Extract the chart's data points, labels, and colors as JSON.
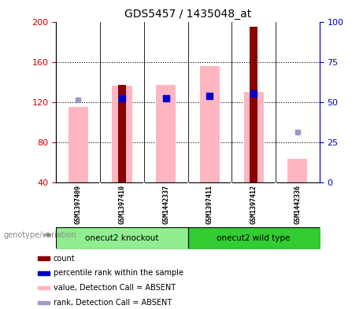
{
  "title": "GDS5457 / 1435048_at",
  "samples": [
    "GSM1397409",
    "GSM1397410",
    "GSM1442337",
    "GSM1397411",
    "GSM1397412",
    "GSM1442336"
  ],
  "ylim_left": [
    40,
    200
  ],
  "ylim_right": [
    0,
    100
  ],
  "yticks_left": [
    40,
    80,
    120,
    160,
    200
  ],
  "yticks_right": [
    0,
    25,
    50,
    75,
    100
  ],
  "bar_bottom": 40,
  "count_values": [
    0,
    137,
    0,
    0,
    195,
    0
  ],
  "count_color": "#8B0000",
  "count_bar_width": 0.18,
  "pink_bar_values": [
    115,
    136,
    137,
    156,
    130,
    63
  ],
  "pink_bar_color": "#FFB6C1",
  "pink_bar_width": 0.45,
  "blue_shown": [
    false,
    true,
    true,
    true,
    true,
    false
  ],
  "blue_dot_values": [
    0,
    124,
    124,
    126,
    128,
    0
  ],
  "blue_dot_color": "#0000CD",
  "blue_dot_size": 30,
  "rank_shown": [
    true,
    false,
    false,
    false,
    false,
    true
  ],
  "rank_dot_values": [
    122,
    0,
    0,
    0,
    0,
    90
  ],
  "rank_dot_color": "#9999CC",
  "rank_dot_size": 25,
  "legend_items": [
    {
      "color": "#8B0000",
      "label": "count"
    },
    {
      "color": "#0000CD",
      "label": "percentile rank within the sample"
    },
    {
      "color": "#FFB6C1",
      "label": "value, Detection Call = ABSENT"
    },
    {
      "color": "#9999CC",
      "label": "rank, Detection Call = ABSENT"
    }
  ],
  "xlabel_group": "genotype/variation",
  "left_axis_color": "#CC0000",
  "right_axis_color": "#0000CC",
  "sample_area_color": "#C8C8C8",
  "group1_color": "#90EE90",
  "group2_color": "#33CC33",
  "group1_label": "onecut2 knockout",
  "group2_label": "onecut2 wild type",
  "plot_bg": "#FFFFFF"
}
